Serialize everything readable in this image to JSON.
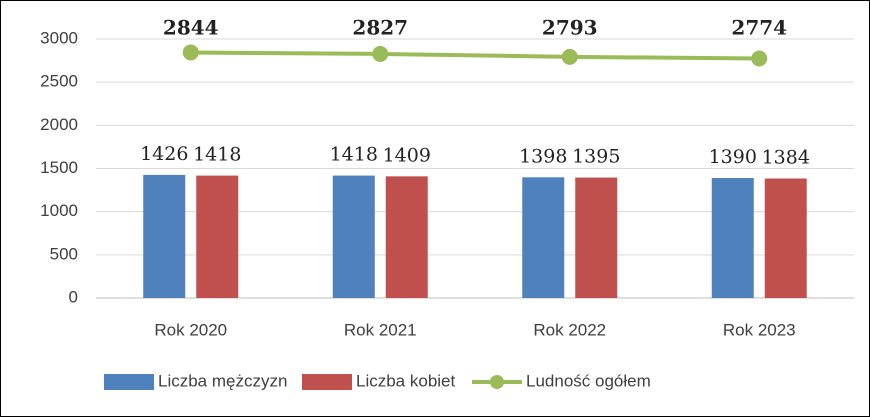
{
  "chart_data": {
    "type": "bar",
    "categories": [
      "Rok 2020",
      "Rok 2021",
      "Rok 2022",
      "Rok 2023"
    ],
    "series": [
      {
        "name": "Liczba mężczyzn",
        "color": "#4f81bd",
        "values": [
          1426,
          1418,
          1398,
          1390
        ]
      },
      {
        "name": "Liczba kobiet",
        "color": "#c0504d",
        "values": [
          1418,
          1409,
          1395,
          1384
        ]
      },
      {
        "name": "Ludność ogółem",
        "type": "line",
        "color": "#9bbb59",
        "values": [
          2844,
          2827,
          2793,
          2774
        ]
      }
    ],
    "ylim": [
      0,
      3000
    ],
    "yticks": [
      0,
      500,
      1000,
      1500,
      2000,
      2500,
      3000
    ],
    "grid": true,
    "legend": "bottom"
  }
}
